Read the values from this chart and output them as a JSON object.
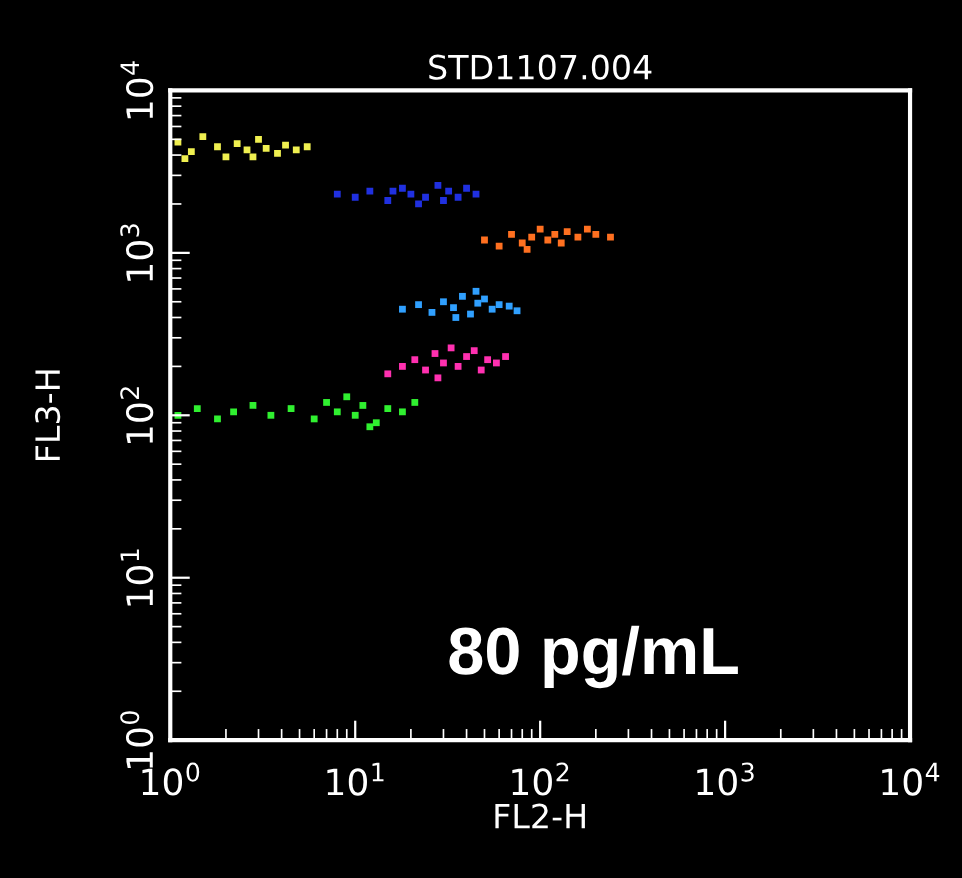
{
  "chart_data": {
    "type": "scatter",
    "title": "STD1107.004",
    "xlabel": "FL2-H",
    "ylabel": "FL3-H",
    "log": "xy",
    "grid": false,
    "legend": false,
    "marker": "square",
    "xlim": [
      1,
      10000
    ],
    "ylim": [
      1,
      10000
    ],
    "xticks": [
      {
        "value": 1,
        "label": "10$^{0}$"
      },
      {
        "value": 10,
        "label": "10$^{1}$"
      },
      {
        "value": 100,
        "label": "10$^{2}$"
      },
      {
        "value": 1000,
        "label": "10$^{3}$"
      },
      {
        "value": 10000,
        "label": "10$^{4}$"
      }
    ],
    "yticks": [
      {
        "value": 1,
        "label": "10$^{0}$"
      },
      {
        "value": 10,
        "label": "10$^{1}$"
      },
      {
        "value": 100,
        "label": "10$^{2}$"
      },
      {
        "value": 1000,
        "label": "10$^{3}$"
      },
      {
        "value": 10000,
        "label": "10$^{4}$"
      }
    ],
    "annotations": [
      "80 pg/mL"
    ],
    "series": [
      {
        "color": "#f0f050",
        "x": [
          1.1,
          1.3,
          1.5,
          1.8,
          2.0,
          2.3,
          2.6,
          3.0,
          3.3,
          3.8,
          4.2,
          4.8,
          5.5,
          1.2,
          2.8
        ],
        "values": [
          4800,
          4200,
          5200,
          4500,
          3900,
          4700,
          4300,
          5000,
          4400,
          4100,
          4600,
          4300,
          4500,
          3800,
          3900
        ]
      },
      {
        "color": "#2030e0",
        "x": [
          8,
          10,
          12,
          15,
          18,
          20,
          24,
          28,
          32,
          36,
          40,
          45,
          22,
          30,
          16
        ],
        "values": [
          2300,
          2200,
          2400,
          2100,
          2500,
          2300,
          2200,
          2600,
          2400,
          2200,
          2500,
          2300,
          2000,
          2100,
          2400
        ]
      },
      {
        "color": "#ff7020",
        "x": [
          50,
          60,
          70,
          80,
          90,
          100,
          110,
          120,
          140,
          160,
          180,
          200,
          240,
          85,
          130
        ],
        "values": [
          1200,
          1100,
          1300,
          1150,
          1250,
          1400,
          1200,
          1300,
          1350,
          1250,
          1400,
          1300,
          1250,
          1050,
          1150
        ]
      },
      {
        "color": "#30a0ff",
        "x": [
          18,
          22,
          26,
          30,
          34,
          38,
          42,
          46,
          50,
          55,
          60,
          68,
          75,
          35,
          45
        ],
        "values": [
          450,
          480,
          430,
          500,
          460,
          540,
          420,
          490,
          520,
          450,
          480,
          470,
          440,
          400,
          580
        ]
      },
      {
        "color": "#ff30b0",
        "x": [
          15,
          18,
          21,
          24,
          27,
          30,
          33,
          36,
          40,
          44,
          48,
          52,
          58,
          65,
          28
        ],
        "values": [
          180,
          200,
          220,
          190,
          240,
          210,
          260,
          200,
          230,
          250,
          190,
          220,
          210,
          230,
          170
        ]
      },
      {
        "color": "#30f030",
        "x": [
          1.1,
          1.4,
          1.8,
          2.2,
          2.8,
          3.5,
          4.5,
          6,
          7,
          8,
          9,
          10,
          11,
          13,
          15,
          18,
          21,
          12
        ],
        "values": [
          100,
          110,
          95,
          105,
          115,
          100,
          110,
          95,
          120,
          105,
          130,
          100,
          115,
          90,
          110,
          105,
          120,
          85
        ]
      }
    ]
  }
}
